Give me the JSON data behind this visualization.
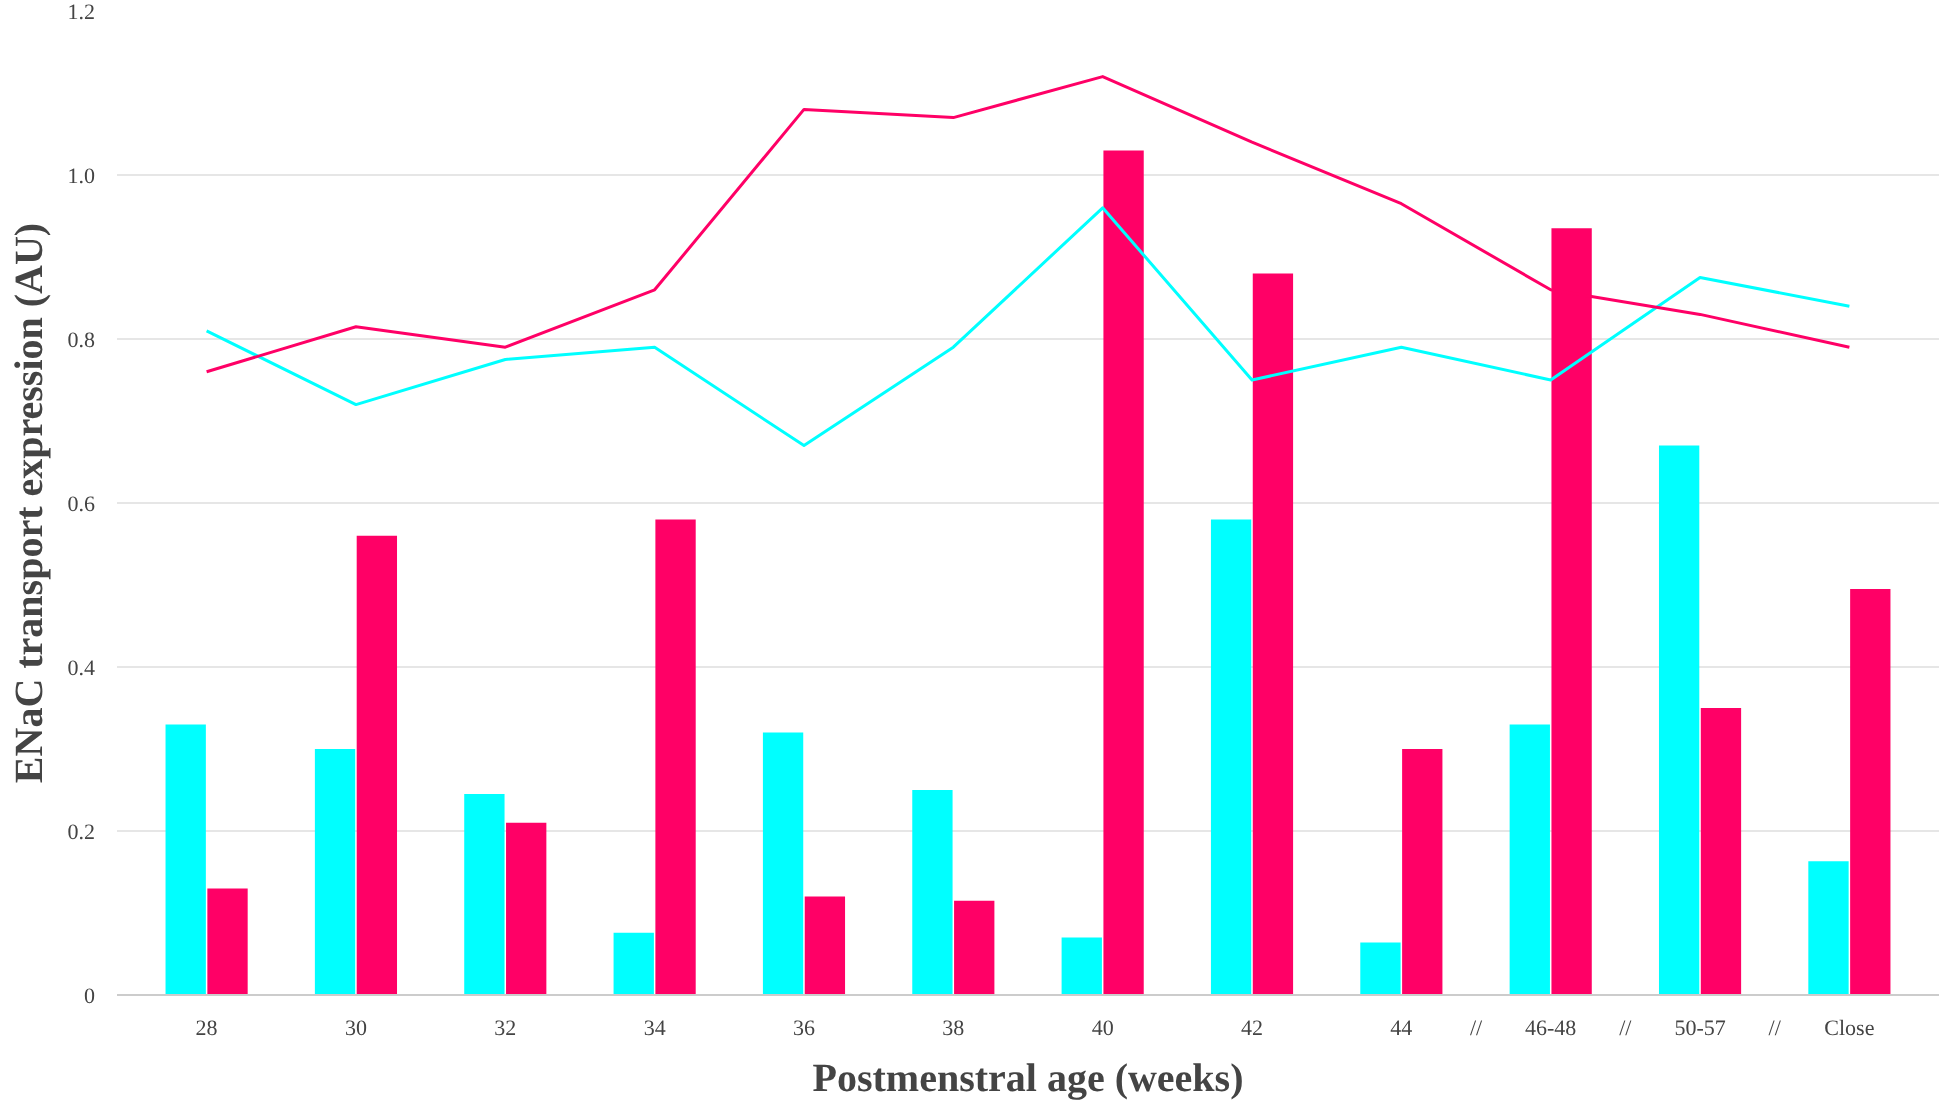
{
  "chart_data": {
    "type": "bar",
    "xlabel": "Postmenstral age (weeks)",
    "ylabel": "ENaC transport expression (AU)",
    "categories": [
      "28",
      "30",
      "32",
      "34",
      "36",
      "38",
      "40",
      "42",
      "44",
      "46-48",
      "50-57",
      "Close"
    ],
    "series": [
      {
        "color": "#00ffff",
        "values": [
          0.33,
          0.3,
          0.245,
          0.076,
          0.32,
          0.25,
          0.07,
          0.58,
          0.064,
          0.33,
          0.67,
          0.163
        ]
      },
      {
        "color": "#ff0066",
        "values": [
          0.13,
          0.56,
          0.21,
          0.58,
          0.12,
          0.115,
          1.03,
          0.88,
          0.3,
          0.935,
          0.35,
          0.495
        ]
      },
      {
        "type": "line",
        "color": "#00ffff",
        "values": [
          0.81,
          0.72,
          0.775,
          0.79,
          0.67,
          0.79,
          0.96,
          0.75,
          0.79,
          0.75,
          0.875,
          0.84
        ]
      },
      {
        "type": "line",
        "color": "#ff0066",
        "values": [
          0.76,
          0.815,
          0.79,
          0.86,
          1.08,
          1.07,
          1.12,
          1.04,
          0.965,
          0.86,
          0.83,
          0.79
        ]
      }
    ],
    "ylim": [
      0,
      1.2
    ],
    "yticks": [
      0,
      0.2,
      0.4,
      0.6,
      0.8,
      {
        "value": 1.0,
        "label": "1.0"
      },
      {
        "value": 1.2,
        "label": "1.2"
      }
    ],
    "grid": "y",
    "annotations": [
      "//",
      "//",
      "//"
    ]
  }
}
